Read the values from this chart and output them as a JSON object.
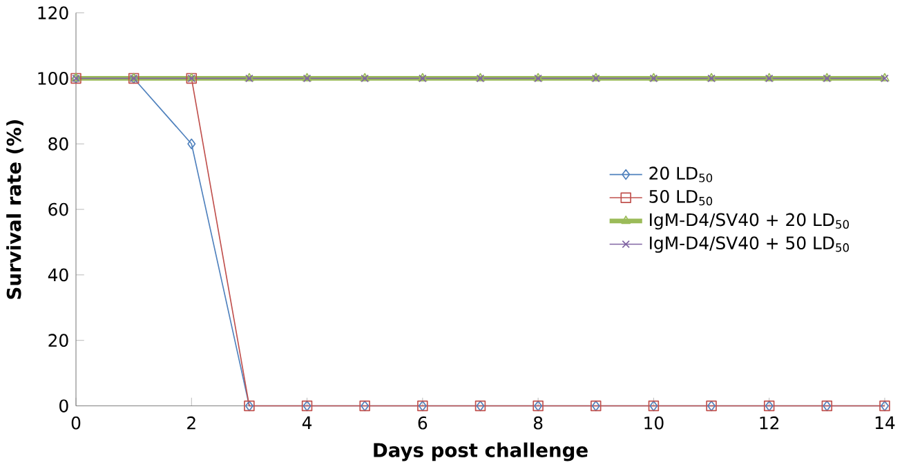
{
  "chart_data": {
    "type": "line",
    "xlabel": "Days post challenge",
    "ylabel": "Survival rate (%)",
    "x": [
      0,
      1,
      2,
      3,
      4,
      5,
      6,
      7,
      8,
      9,
      10,
      11,
      12,
      13,
      14
    ],
    "series": [
      {
        "name": "20 LD$_{50}$",
        "color": "#4f81bd",
        "marker": "diamond",
        "values": [
          100,
          100,
          80,
          0,
          0,
          0,
          0,
          0,
          0,
          0,
          0,
          0,
          0,
          0,
          0
        ]
      },
      {
        "name": "50 LD$_{50}$",
        "color": "#c0504d",
        "marker": "square",
        "values": [
          100,
          100,
          100,
          0,
          0,
          0,
          0,
          0,
          0,
          0,
          0,
          0,
          0,
          0,
          0
        ]
      },
      {
        "name": "IgM-D4/SV40 + 20 LD$_{50}$",
        "color": "#9bbb59",
        "marker": "triangle",
        "values": [
          100,
          100,
          100,
          100,
          100,
          100,
          100,
          100,
          100,
          100,
          100,
          100,
          100,
          100,
          100
        ]
      },
      {
        "name": "IgM-D4/SV40 + 50 LD$_{50}$",
        "color": "#8064a2",
        "marker": "cross",
        "values": [
          100,
          100,
          100,
          100,
          100,
          100,
          100,
          100,
          100,
          100,
          100,
          100,
          100,
          100,
          100
        ]
      }
    ],
    "xlim": [
      0,
      14
    ],
    "xticks": [
      0,
      2,
      4,
      6,
      8,
      10,
      12,
      14
    ],
    "ylim": [
      0,
      120
    ],
    "yticks": [
      0,
      20,
      40,
      60,
      80,
      100,
      120
    ],
    "grid": false,
    "legend": "right",
    "line_style": "solid"
  }
}
